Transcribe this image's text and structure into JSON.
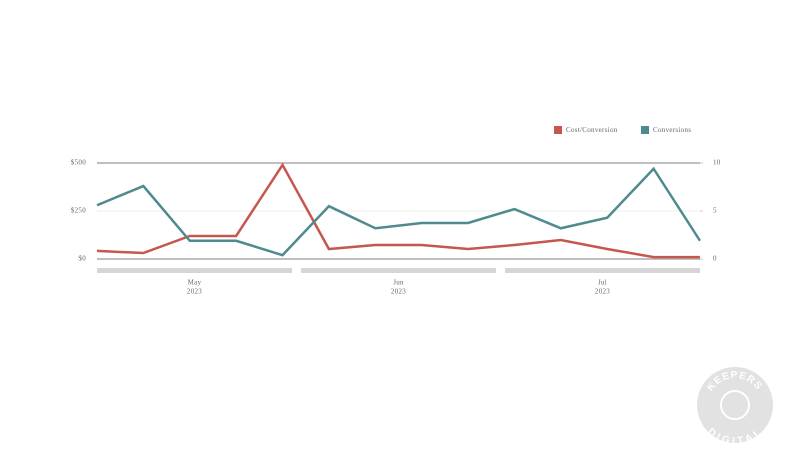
{
  "chart_data": {
    "type": "line",
    "categories": [
      null,
      null,
      null,
      null,
      null,
      null,
      null,
      null,
      null,
      null,
      null,
      null,
      null,
      null
    ],
    "month_groups": [
      {
        "month": "May",
        "year": "2023"
      },
      {
        "month": "Jun",
        "year": "2023"
      },
      {
        "month": "Jul",
        "year": "2023"
      }
    ],
    "series": [
      {
        "name": "Cost/Conversion",
        "color": "#c5574f",
        "axis": "y",
        "values": [
          42,
          31,
          120,
          120,
          490,
          52,
          73,
          73,
          52,
          73,
          99,
          52,
          10,
          10
        ]
      },
      {
        "name": "Conversions",
        "color": "#4e8a8e",
        "axis": "y2",
        "values": [
          5.6,
          7.6,
          1.9,
          1.9,
          0.4,
          5.5,
          3.2,
          3.75,
          3.75,
          5.2,
          3.2,
          4.3,
          9.4,
          1.9
        ]
      }
    ],
    "ylim": [
      0,
      500
    ],
    "yticks": [
      {
        "value": 0,
        "label": "$0"
      },
      {
        "value": 250,
        "label": "$250"
      },
      {
        "value": 500,
        "label": "$500"
      }
    ],
    "y2lim": [
      0,
      10
    ],
    "y2ticks": [
      0,
      5,
      10
    ],
    "grid": true,
    "legend": "top-right"
  },
  "watermark": {
    "top": "KEEPERS",
    "bottom": "DIGITAL"
  }
}
